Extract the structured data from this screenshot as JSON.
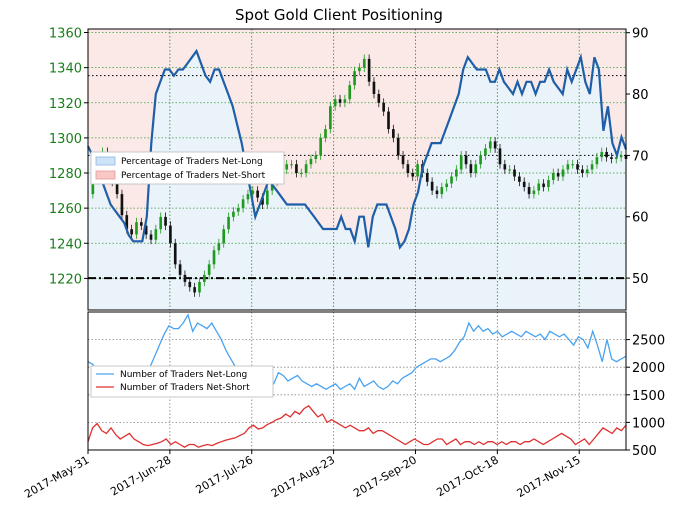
{
  "chart_data": [
    {
      "type": "candlestick",
      "title": "Spot Gold Client Positioning",
      "x_tick_labels": [
        "2017-May-31",
        "2017-Jun-28",
        "2017-Jul-26",
        "2017-Aug-23",
        "2017-Sep-20",
        "2017-Oct-18",
        "2017-Nov-15"
      ],
      "x_range": [
        "2017-May-31",
        "2017-Dec-01"
      ],
      "left_axis": {
        "label": "",
        "ticks": [
          1220,
          1240,
          1260,
          1280,
          1300,
          1320,
          1340,
          1360
        ],
        "range": [
          1202,
          1362
        ],
        "color": "#1a7f1a"
      },
      "right_axis": {
        "label": "",
        "ticks": [
          50,
          60,
          70,
          80,
          90
        ],
        "range": [
          44.8,
          90.6
        ]
      },
      "reference_lines": [
        {
          "axis": "right",
          "value": 50,
          "style": "dash-dot"
        },
        {
          "axis": "right",
          "value": 70,
          "style": "dotted"
        },
        {
          "axis": "right",
          "value": 83,
          "style": "dotted"
        }
      ],
      "legend": {
        "position": "left-middle",
        "entries": [
          "Percentage of Traders Net-Long",
          "Percentage of Traders Net-Short"
        ]
      },
      "price_close": [
        1268,
        1278,
        1286,
        1292,
        1285,
        1275,
        1268,
        1256,
        1248,
        1245,
        1252,
        1250,
        1245,
        1242,
        1248,
        1255,
        1250,
        1240,
        1228,
        1222,
        1218,
        1215,
        1212,
        1218,
        1222,
        1228,
        1236,
        1240,
        1248,
        1255,
        1258,
        1260,
        1265,
        1268,
        1270,
        1266,
        1262,
        1270,
        1275,
        1280,
        1282,
        1285,
        1285,
        1280,
        1280,
        1285,
        1288,
        1290,
        1300,
        1305,
        1318,
        1322,
        1320,
        1322,
        1330,
        1338,
        1340,
        1345,
        1332,
        1325,
        1320,
        1315,
        1305,
        1300,
        1290,
        1285,
        1280,
        1278,
        1285,
        1280,
        1275,
        1270,
        1268,
        1272,
        1274,
        1278,
        1282,
        1290,
        1285,
        1280,
        1285,
        1290,
        1294,
        1298,
        1294,
        1285,
        1282,
        1282,
        1278,
        1275,
        1272,
        1268,
        1270,
        1274,
        1272,
        1276,
        1280,
        1278,
        1282,
        1285,
        1285,
        1282,
        1280,
        1282,
        1285,
        1289,
        1292,
        1289,
        1288,
        1289,
        1290,
        1288
      ],
      "pct_long": [
        71.5,
        70,
        68,
        66,
        64,
        62,
        61,
        60,
        59,
        57,
        56,
        56,
        56,
        60,
        72,
        80,
        82,
        84,
        84,
        83,
        84,
        84,
        85,
        86,
        87,
        85,
        83,
        82,
        84,
        84,
        82,
        80,
        78,
        75,
        72,
        68,
        64,
        60,
        62,
        64,
        66,
        65,
        64,
        63,
        62,
        62,
        62,
        62,
        62,
        61,
        60,
        59,
        58,
        58,
        58,
        58,
        60,
        58,
        58,
        56,
        60,
        60,
        55,
        60,
        62,
        62,
        62,
        60,
        58,
        55,
        56,
        58,
        62,
        64,
        68,
        70,
        72,
        72,
        72,
        74,
        76,
        78,
        80,
        84,
        86,
        85,
        84,
        84,
        84,
        82,
        82,
        84,
        82,
        81,
        80,
        82,
        80,
        82,
        82,
        80,
        82,
        82,
        84,
        82,
        81,
        80,
        84,
        82,
        84,
        86,
        82,
        80,
        86,
        84,
        74,
        78,
        72,
        70,
        73,
        71
      ]
    },
    {
      "type": "line",
      "y_ticks": [
        500,
        1000,
        1500,
        2000,
        2500
      ],
      "ylim": [
        500,
        3000
      ],
      "legend": {
        "position": "left-middle",
        "entries": [
          "Number of Traders Net-Long",
          "Number of Traders Net-Short"
        ]
      },
      "series": [
        {
          "name": "Number of Traders Net-Long",
          "color": "#4aa3f0",
          "values": [
            2100,
            2050,
            1900,
            1850,
            1880,
            1840,
            1800,
            1750,
            1700,
            1650,
            1700,
            1650,
            1750,
            2000,
            2200,
            2400,
            2600,
            2750,
            2700,
            2700,
            2800,
            2950,
            2650,
            2800,
            2750,
            2700,
            2800,
            2650,
            2500,
            2300,
            2150,
            2000,
            1900,
            1850,
            1800,
            1750,
            1700,
            1650,
            1650,
            1700,
            1900,
            1850,
            1750,
            1800,
            1850,
            1750,
            1700,
            1650,
            1700,
            1650,
            1600,
            1650,
            1700,
            1600,
            1650,
            1700,
            1600,
            1800,
            1650,
            1700,
            1750,
            1650,
            1600,
            1650,
            1750,
            1700,
            1800,
            1850,
            1900,
            2000,
            2050,
            2100,
            2150,
            2150,
            2100,
            2150,
            2200,
            2300,
            2450,
            2550,
            2800,
            2650,
            2750,
            2650,
            2700,
            2600,
            2650,
            2550,
            2600,
            2650,
            2600,
            2550,
            2650,
            2600,
            2550,
            2600,
            2500,
            2650,
            2600,
            2550,
            2600,
            2500,
            2400,
            2550,
            2500,
            2350,
            2650,
            2400,
            2100,
            2500,
            2150,
            2100,
            2150,
            2200
          ]
        },
        {
          "name": "Number of Traders Net-Short",
          "color": "#e03030",
          "values": [
            650,
            900,
            980,
            850,
            800,
            900,
            780,
            700,
            750,
            800,
            700,
            650,
            600,
            580,
            600,
            620,
            650,
            700,
            600,
            650,
            600,
            550,
            600,
            600,
            550,
            580,
            600,
            580,
            620,
            650,
            680,
            700,
            720,
            760,
            800,
            900,
            950,
            880,
            900,
            960,
            1000,
            1050,
            1080,
            1150,
            1100,
            1200,
            1150,
            1250,
            1300,
            1200,
            1100,
            1150,
            1000,
            1050,
            1000,
            950,
            900,
            950,
            900,
            850,
            850,
            900,
            800,
            850,
            850,
            800,
            750,
            700,
            650,
            600,
            650,
            700,
            650,
            600,
            600,
            650,
            700,
            700,
            600,
            650,
            700,
            600,
            650,
            650,
            600,
            650,
            600,
            650,
            650,
            600,
            650,
            600,
            650,
            650,
            600,
            650,
            650,
            700,
            650,
            600,
            650,
            700,
            750,
            800,
            750,
            700,
            600,
            650,
            700,
            600,
            700,
            800,
            900,
            850,
            800,
            900,
            850,
            950
          ]
        }
      ]
    }
  ]
}
